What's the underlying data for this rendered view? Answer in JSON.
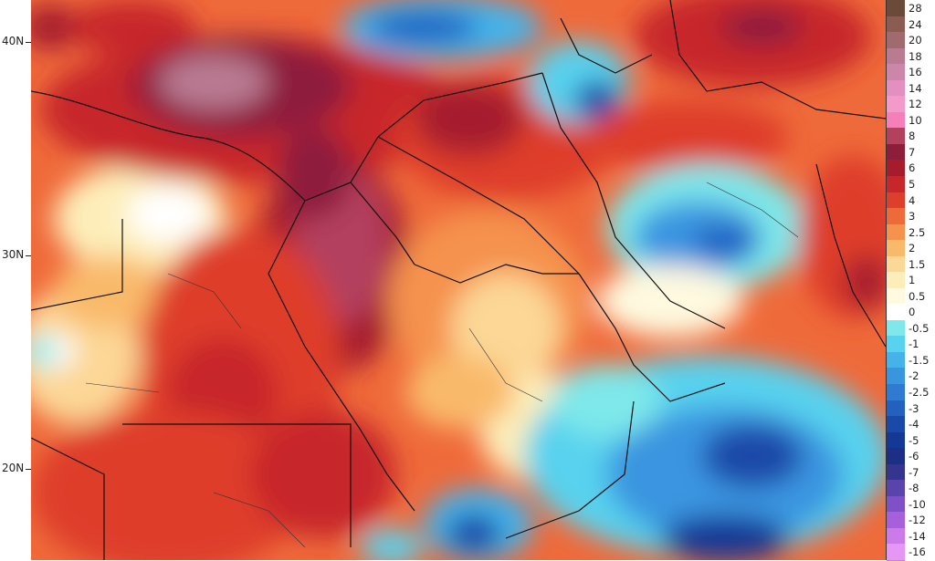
{
  "latitude_labels": [
    {
      "label": "40N"
    },
    {
      "label": "30N"
    },
    {
      "label": "20N"
    }
  ],
  "legend": {
    "entries": [
      {
        "label": "28",
        "color": "#6b4a3a"
      },
      {
        "label": "24",
        "color": "#8a5c52"
      },
      {
        "label": "20",
        "color": "#a06a6e"
      },
      {
        "label": "18",
        "color": "#b97a92"
      },
      {
        "label": "16",
        "color": "#cc86aa"
      },
      {
        "label": "14",
        "color": "#e38fc0"
      },
      {
        "label": "12",
        "color": "#f39acb"
      },
      {
        "label": "10",
        "color": "#f77fb9"
      },
      {
        "label": "8",
        "color": "#b3415e"
      },
      {
        "label": "7",
        "color": "#8e1d3c"
      },
      {
        "label": "6",
        "color": "#a61c2d"
      },
      {
        "label": "5",
        "color": "#c7272b"
      },
      {
        "label": "4",
        "color": "#de3e2c"
      },
      {
        "label": "3",
        "color": "#ef6a3a"
      },
      {
        "label": "2.5",
        "color": "#f5924d"
      },
      {
        "label": "2",
        "color": "#f9b96a"
      },
      {
        "label": "1.5",
        "color": "#fcd796"
      },
      {
        "label": "1",
        "color": "#fdeeb9"
      },
      {
        "label": "0.5",
        "color": "#fef9df"
      },
      {
        "label": "0",
        "color": "#ffffff"
      },
      {
        "label": "-0.5",
        "color": "#7ee8ea"
      },
      {
        "label": "-1",
        "color": "#58d2ee"
      },
      {
        "label": "-1.5",
        "color": "#45b3ea"
      },
      {
        "label": "-2",
        "color": "#3a95e0"
      },
      {
        "label": "-2.5",
        "color": "#2f7ad3"
      },
      {
        "label": "-3",
        "color": "#2361c1"
      },
      {
        "label": "-4",
        "color": "#1a4aa9"
      },
      {
        "label": "-5",
        "color": "#143895"
      },
      {
        "label": "-6",
        "color": "#1d2e86"
      },
      {
        "label": "-7",
        "color": "#35358f"
      },
      {
        "label": "-8",
        "color": "#5b43ad"
      },
      {
        "label": "-10",
        "color": "#8050c8"
      },
      {
        "label": "-12",
        "color": "#a85fdc"
      },
      {
        "label": "-14",
        "color": "#cc79ea"
      },
      {
        "label": "-16",
        "color": "#e696f5"
      }
    ]
  }
}
